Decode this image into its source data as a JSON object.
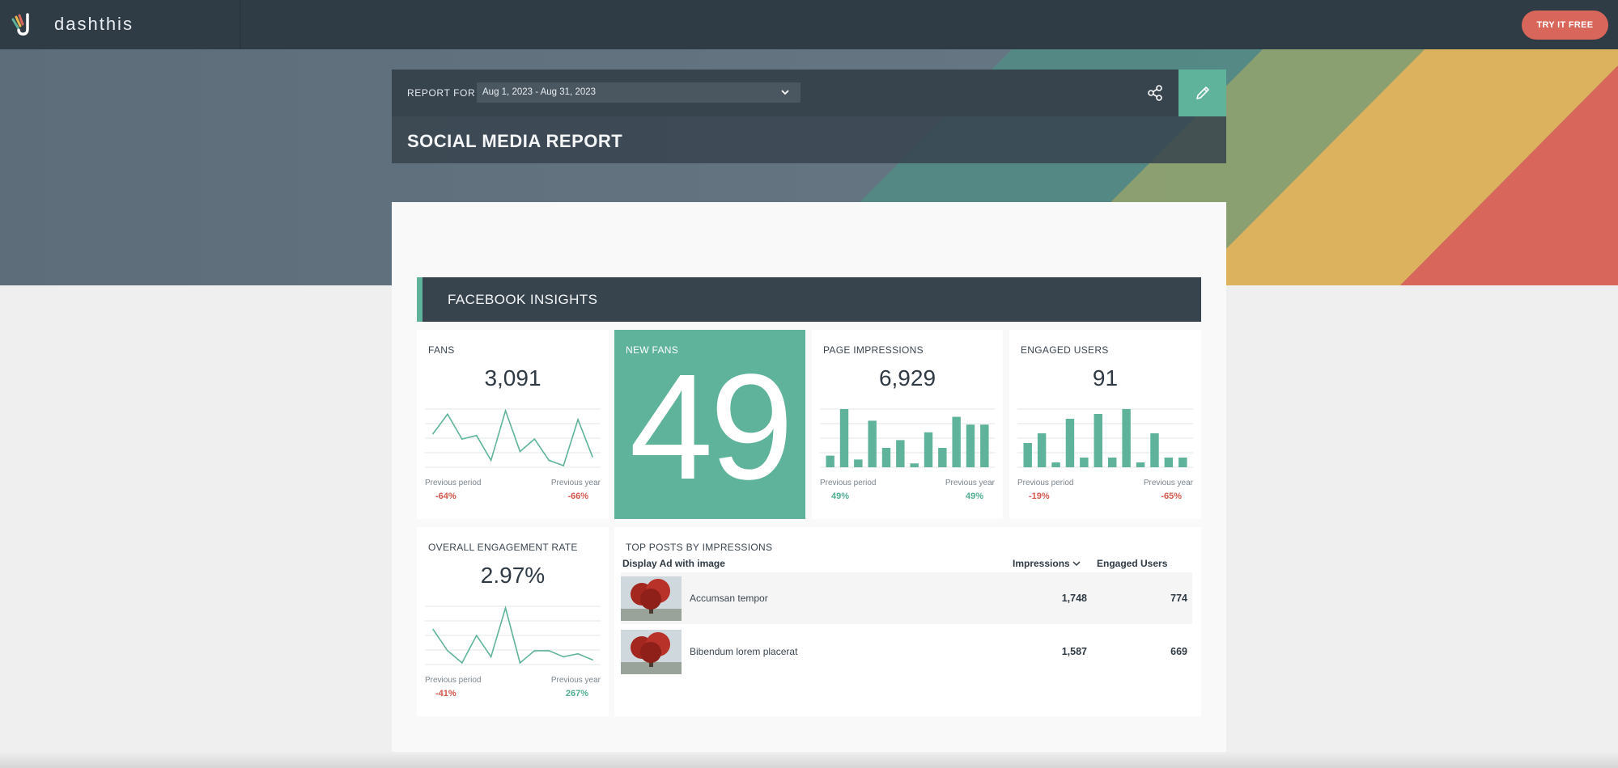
{
  "app": {
    "brand": "dashthis",
    "try_button": "TRY IT FREE"
  },
  "colors": {
    "accent_green": "#5fb39b",
    "accent_red": "#d9665a",
    "navy": "#2f3b45",
    "negative": "#d5574a",
    "positive": "#4fae91"
  },
  "report": {
    "report_for_label": "REPORT FOR",
    "date_range": "Aug 1, 2023 - Aug 31, 2023",
    "title": "SOCIAL MEDIA REPORT"
  },
  "section": {
    "title": "FACEBOOK INSIGHTS"
  },
  "widgets": {
    "fans": {
      "label": "FANS",
      "value": "3,091",
      "prev_period_label": "Previous period",
      "prev_period": "-64%",
      "prev_year_label": "Previous year",
      "prev_year": "-66%"
    },
    "new_fans": {
      "label": "NEW FANS",
      "value": "49"
    },
    "page_impressions": {
      "label": "PAGE IMPRESSIONS",
      "value": "6,929",
      "prev_period_label": "Previous period",
      "prev_period": "49%",
      "prev_year_label": "Previous year",
      "prev_year": "49%"
    },
    "engaged_users": {
      "label": "ENGAGED USERS",
      "value": "91",
      "prev_period_label": "Previous period",
      "prev_period": "-19%",
      "prev_year_label": "Previous year",
      "prev_year": "-65%"
    },
    "engagement_rate": {
      "label": "OVERALL ENGAGEMENT RATE",
      "value": "2.97%",
      "prev_period_label": "Previous period",
      "prev_period": "-41%",
      "prev_year_label": "Previous year",
      "prev_year": "267%"
    }
  },
  "top_posts": {
    "label": "TOP POSTS BY IMPRESSIONS",
    "columns": {
      "post": "Display Ad with image",
      "impressions": "Impressions",
      "engaged": "Engaged Users"
    },
    "rows": [
      {
        "name": "Accumsan tempor",
        "impressions": "1,748",
        "engaged": "774"
      },
      {
        "name": "Bibendum lorem placerat",
        "impressions": "1,587",
        "engaged": "669"
      }
    ]
  },
  "chart_data": [
    {
      "type": "line",
      "series": [
        {
          "values": [
            55,
            66,
            52,
            54,
            40,
            68,
            45,
            52,
            40,
            37,
            63,
            42
          ]
        }
      ]
    },
    {
      "type": "bar",
      "series": [
        {
          "values": [
            3,
            15,
            2,
            12,
            5,
            7,
            1,
            9,
            5,
            13,
            11,
            11
          ]
        }
      ]
    },
    {
      "type": "bar",
      "series": [
        {
          "values": [
            5,
            7,
            1,
            10,
            2,
            11,
            2,
            12,
            1,
            7,
            2,
            2
          ]
        }
      ]
    },
    {
      "type": "line",
      "series": [
        {
          "values": [
            1.9,
            1.2,
            0.8,
            1.7,
            1.0,
            2.6,
            0.8,
            1.2,
            1.2,
            1.0,
            1.1,
            0.9
          ]
        }
      ]
    }
  ]
}
